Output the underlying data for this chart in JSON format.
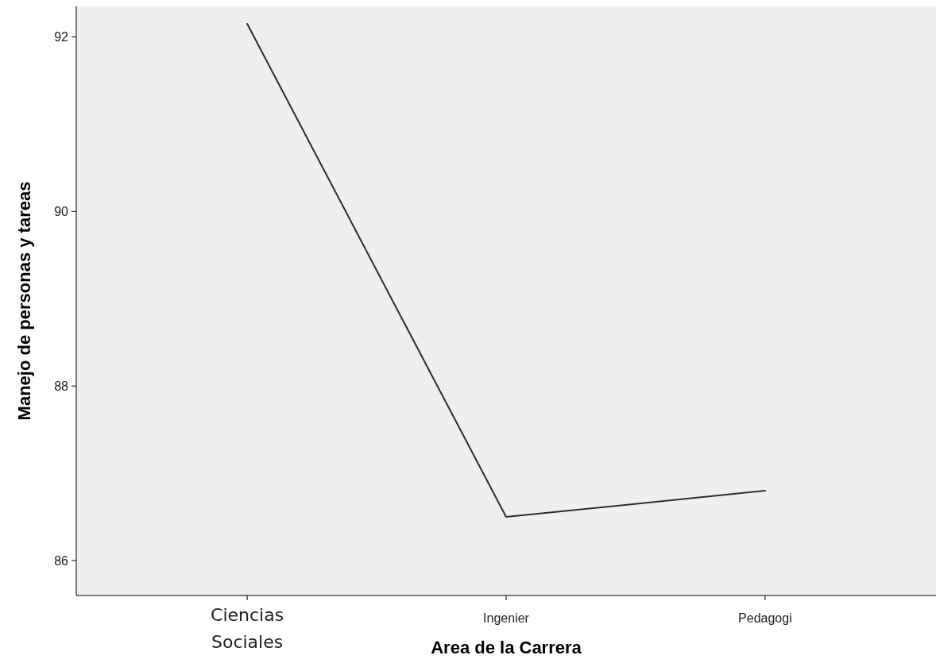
{
  "chart_data": {
    "type": "line",
    "xlabel": "Area de la Carrera",
    "ylabel": "Manejo de personas y tareas",
    "categories": [
      "Ciencias Sociales",
      "Ingenier",
      "Pedagogi"
    ],
    "series": [
      {
        "color": "#2b2b3b",
        "values": [
          92.15,
          86.5,
          86.8
        ]
      }
    ],
    "ylim": [
      85.6,
      92.35
    ],
    "yticks": [
      86,
      88,
      90,
      92
    ],
    "marker": "none",
    "line_style": "solid"
  }
}
